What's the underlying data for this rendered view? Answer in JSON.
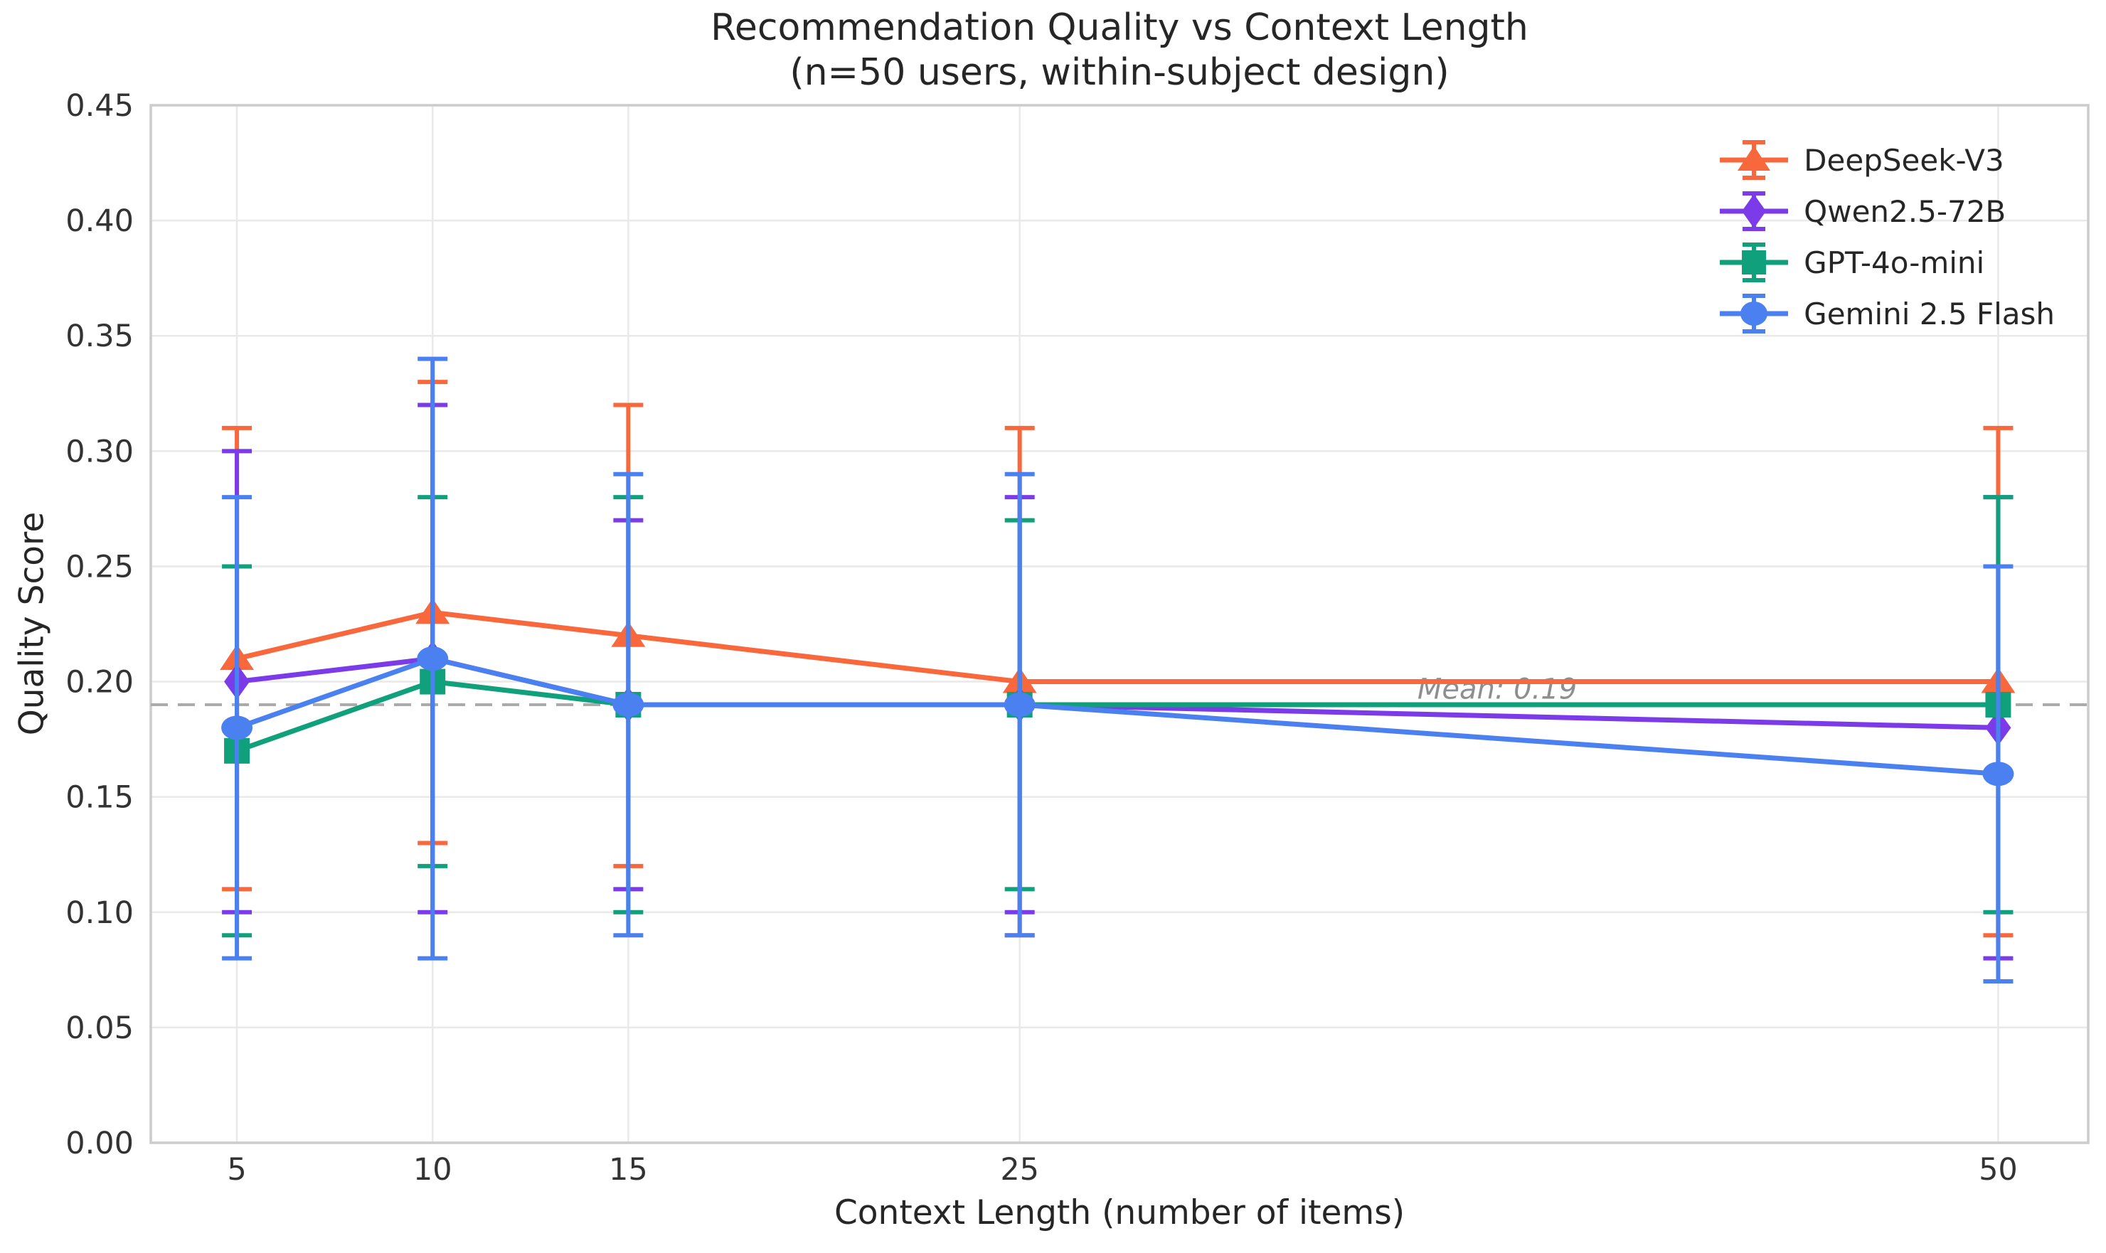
{
  "chart_data": {
    "type": "line",
    "title": "Recommendation Quality vs Context Length",
    "subtitle": "(n=50 users, within-subject design)",
    "xlabel": "Context Length (number of items)",
    "ylabel": "Quality Score",
    "x": [
      5,
      10,
      15,
      25,
      50
    ],
    "xtick_labels": [
      "5",
      "10",
      "15",
      "25",
      "50"
    ],
    "ytick_values": [
      0.0,
      0.05,
      0.1,
      0.15,
      0.2,
      0.25,
      0.3,
      0.35,
      0.4,
      0.45
    ],
    "ytick_labels": [
      "0.00",
      "0.05",
      "0.10",
      "0.15",
      "0.20",
      "0.25",
      "0.30",
      "0.35",
      "0.40",
      "0.45"
    ],
    "xlim": [
      2.8,
      52.3
    ],
    "ylim": [
      0.0,
      0.45
    ],
    "grid": true,
    "legend_position": "upper right",
    "mean_line": {
      "value": 0.19,
      "label": "Mean: 0.19",
      "label_x": 37.2,
      "label_y": 0.197
    },
    "series": [
      {
        "name": "DeepSeek-V3",
        "color": "#F8683C",
        "marker": "triangle",
        "values": [
          0.21,
          0.23,
          0.22,
          0.2,
          0.2
        ],
        "errors": [
          0.1,
          0.1,
          0.1,
          0.11,
          0.11
        ]
      },
      {
        "name": "Qwen2.5-72B",
        "color": "#7C3BE8",
        "marker": "diamond",
        "values": [
          0.2,
          0.21,
          0.19,
          0.19,
          0.18
        ],
        "errors": [
          0.1,
          0.11,
          0.08,
          0.09,
          0.1
        ]
      },
      {
        "name": "GPT-4o-mini",
        "color": "#10A07C",
        "marker": "square",
        "values": [
          0.17,
          0.2,
          0.19,
          0.19,
          0.19
        ],
        "errors": [
          0.08,
          0.08,
          0.09,
          0.08,
          0.09
        ]
      },
      {
        "name": "Gemini 2.5 Flash",
        "color": "#4A80F0",
        "marker": "circle",
        "values": [
          0.18,
          0.21,
          0.19,
          0.19,
          0.16
        ],
        "errors": [
          0.1,
          0.13,
          0.1,
          0.1,
          0.09
        ]
      }
    ]
  },
  "styles": {
    "background": "#ffffff",
    "grid_color": "#e9e9e9",
    "spine_color": "#cccccc",
    "tick_label_color": "#333333",
    "mean_line_color": "#ababab",
    "mean_label_color": "#8e8e8e"
  }
}
